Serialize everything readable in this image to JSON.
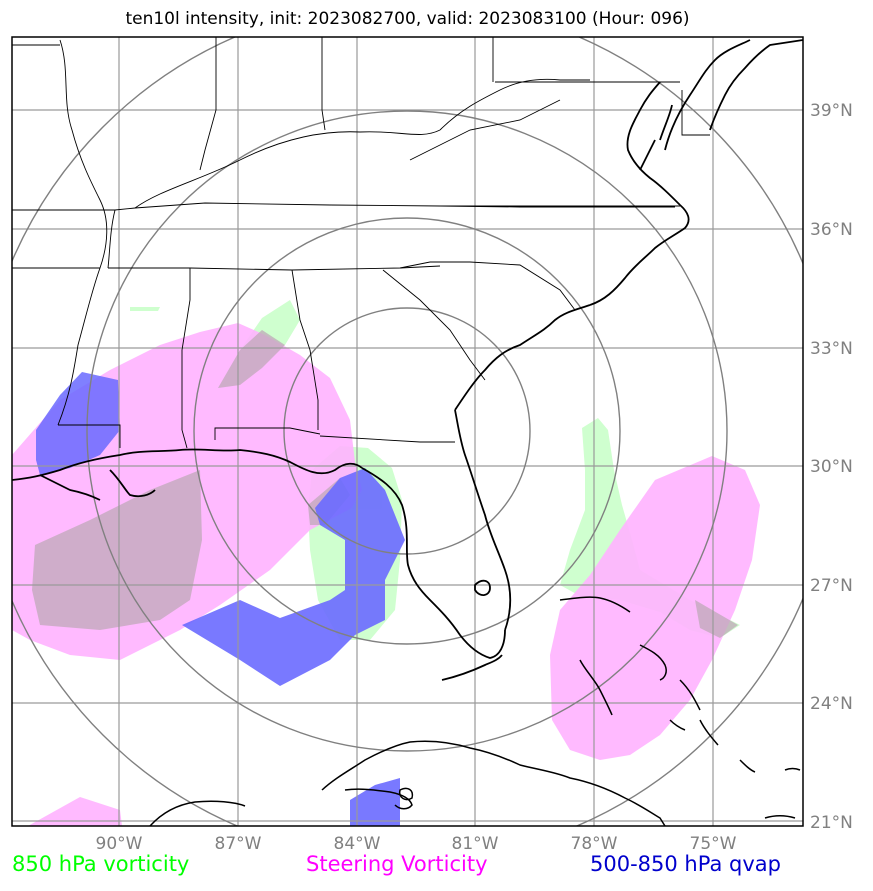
{
  "title": "ten10l intensity, init: 2023082700, valid: 2023083100 (Hour: 096)",
  "lat_labels": [
    "39°N",
    "36°N",
    "33°N",
    "30°N",
    "27°N",
    "24°N",
    "21°N"
  ],
  "lon_labels": [
    "90°W",
    "87°W",
    "84°W",
    "81°W",
    "78°W",
    "75°W"
  ],
  "legend": {
    "vorticity_850": {
      "label": "850 hPa vorticity",
      "color": "#00ff00"
    },
    "steering": {
      "label": "Steering Vorticity",
      "color": "#ff00ff"
    },
    "qvap": {
      "label": "500-850 hPa qvap",
      "color": "#0000ff"
    }
  },
  "layer_colors": {
    "vorticity_850_fill": "#ccffcc",
    "steering_fill": "#ffb3ff",
    "qvap_fill": "#6a6aff"
  }
}
